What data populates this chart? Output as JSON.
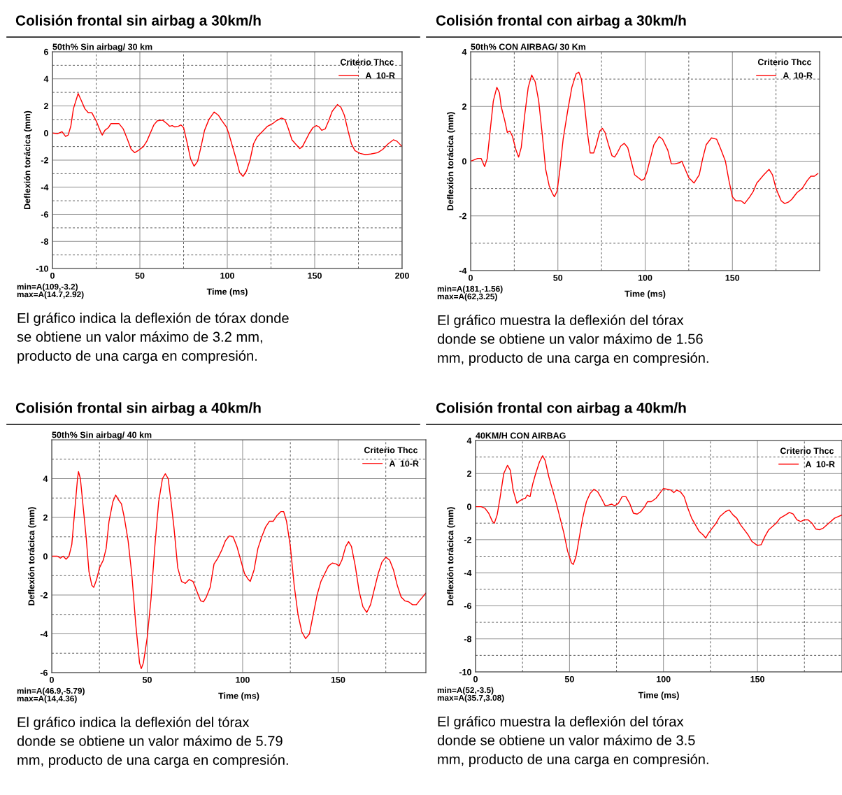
{
  "chart_data": [
    {
      "type": "line",
      "title": "Colisión frontal sin airbag a 30km/h",
      "subtitle": "50th% Sin airbag/ 30 km",
      "xlabel": "Time (ms)",
      "ylabel": "Deflexión torácica (mm)",
      "legend_title": "Criterio Thcc",
      "legend": "top right",
      "grid": true,
      "xlim": [
        0,
        200
      ],
      "xticks": [
        0,
        {
          "value": 25,
          "label": null
        },
        50,
        {
          "value": 75,
          "label": null
        },
        100,
        {
          "value": 125,
          "label": null
        },
        150,
        {
          "value": 175,
          "label": null
        },
        200
      ],
      "ylim": [
        -10,
        6
      ],
      "yticks": [
        -10,
        {
          "value": -9,
          "label": null
        },
        -8,
        {
          "value": -7,
          "label": null
        },
        -6,
        {
          "value": -5,
          "label": null
        },
        -4,
        {
          "value": -3,
          "label": null
        },
        -2,
        {
          "value": -1,
          "label": null
        },
        0,
        {
          "value": 1,
          "label": null
        },
        2,
        {
          "value": 3,
          "label": null
        },
        4,
        {
          "value": 5,
          "label": null
        },
        6
      ],
      "annotations": [
        "min=A(109,-3.2)",
        "max=A(14.7,2.92)",
        "El gráfico indica la deflexión de tórax donde\nse obtiene un valor máximo de 3.2 mm,\nproducto de una carga en compresión."
      ],
      "series": [
        {
          "name": "A  10-R",
          "color": "#ff0000",
          "x": [
            0,
            3,
            5.5,
            7.5,
            9,
            10.5,
            12,
            14.7,
            16.5,
            18.5,
            20.5,
            22.5,
            25,
            27.5,
            28.5,
            30,
            32,
            33.5,
            36,
            38,
            40.5,
            43,
            45,
            47,
            49,
            52,
            54,
            56,
            58,
            60,
            63,
            65.5,
            67,
            68.5,
            70,
            72,
            73.5,
            75,
            77,
            79,
            81,
            83,
            85,
            87,
            89.5,
            92.5,
            95,
            97,
            99.5,
            101,
            103,
            105,
            107,
            109,
            111,
            113,
            115,
            117,
            120,
            123,
            126,
            128,
            131,
            133,
            135,
            137,
            139,
            141.5,
            143,
            145,
            147,
            149,
            151,
            152.5,
            154,
            156,
            158,
            160,
            163,
            165,
            167,
            169,
            171,
            173,
            176,
            179,
            182,
            186,
            189,
            192,
            195,
            197,
            200
          ],
          "values": [
            0,
            -0.05,
            0.1,
            -0.25,
            -0.15,
            0.5,
            1.8,
            2.92,
            2.4,
            1.8,
            1.5,
            1.5,
            0.9,
            0.1,
            -0.15,
            0.2,
            0.4,
            0.7,
            0.7,
            0.7,
            0.3,
            -0.5,
            -1.2,
            -1.45,
            -1.3,
            -1.0,
            -0.6,
            0,
            0.6,
            0.9,
            0.95,
            0.7,
            0.5,
            0.55,
            0.45,
            0.5,
            0.6,
            0.4,
            -0.7,
            -1.9,
            -2.45,
            -2.1,
            -1.0,
            0.2,
            1.0,
            1.55,
            1.3,
            0.9,
            0.45,
            -0.1,
            -1.0,
            -1.9,
            -2.9,
            -3.2,
            -2.8,
            -2.0,
            -0.8,
            -0.3,
            0.1,
            0.5,
            0.7,
            0.9,
            1.1,
            1.0,
            0.3,
            -0.5,
            -0.8,
            -1.15,
            -1.0,
            -0.5,
            0.0,
            0.4,
            0.55,
            0.45,
            0.2,
            0.3,
            0.9,
            1.6,
            2.1,
            1.9,
            1.3,
            0.2,
            -0.8,
            -1.3,
            -1.5,
            -1.6,
            -1.55,
            -1.45,
            -1.2,
            -0.8,
            -0.5,
            -0.6,
            -1.0
          ]
        }
      ]
    },
    {
      "type": "line",
      "title": "Colisión frontal con airbag a 30km/h",
      "subtitle": "50th% CON AIRBAG/ 30 Km",
      "xlabel": "Time (ms)",
      "ylabel": "Deflexión torácica (mm)",
      "legend_title": "Criterio Thcc",
      "legend": "top right",
      "grid": true,
      "xlim": [
        0,
        200
      ],
      "xticks": [
        0,
        {
          "value": 25,
          "label": null
        },
        50,
        {
          "value": 75,
          "label": null
        },
        100,
        {
          "value": 125,
          "label": null
        },
        150,
        {
          "value": 175,
          "label": null
        }
      ],
      "ylim": [
        -4,
        4
      ],
      "yticks": [
        -4,
        {
          "value": -3,
          "label": null
        },
        -2,
        {
          "value": -1,
          "label": null
        },
        0,
        {
          "value": 1,
          "label": null
        },
        2,
        {
          "value": 3,
          "label": null
        },
        4
      ],
      "annotations": [
        "min=A(181,-1.56)",
        "max=A(62,3.25)",
        "El gráfico muestra la deflexión del tórax\ndonde se obtiene un valor máximo de 1.56\nmm, producto de una carga en compresión."
      ],
      "series": [
        {
          "name": "A  10-R",
          "color": "#ff0000",
          "x": [
            0,
            2,
            4,
            6,
            8,
            9.5,
            11,
            13,
            15,
            16.5,
            17.5,
            19.5,
            21,
            22.5,
            24,
            26,
            27.5,
            29,
            31,
            33,
            35,
            37,
            39,
            41,
            43,
            45,
            47,
            48,
            49.5,
            51,
            53,
            55.5,
            58,
            60.5,
            62,
            63.5,
            65,
            67,
            68.5,
            70.5,
            72,
            74,
            75.5,
            77,
            79,
            81,
            82.5,
            84,
            86,
            88,
            90,
            92,
            94,
            96,
            98,
            99.5,
            101,
            103,
            105,
            108,
            110,
            113,
            115,
            117,
            120,
            121,
            123,
            125,
            128,
            131,
            133,
            135,
            138,
            141,
            143,
            146,
            148,
            150,
            152,
            155,
            157,
            160,
            162,
            164,
            166,
            168,
            171,
            173,
            175,
            178,
            180,
            182,
            184,
            187,
            190,
            193,
            195,
            197,
            199
          ],
          "values": [
            0,
            0.05,
            0.1,
            0.1,
            -0.2,
            0.1,
            1.0,
            2.2,
            2.7,
            2.5,
            2.0,
            1.5,
            1.05,
            1.1,
            0.9,
            0.4,
            0.15,
            0.5,
            1.7,
            2.7,
            3.15,
            2.9,
            2.2,
            1.0,
            -0.3,
            -0.9,
            -1.2,
            -1.3,
            -1.1,
            -0.4,
            0.8,
            1.8,
            2.7,
            3.2,
            3.25,
            3.0,
            2.2,
            1.0,
            0.3,
            0.3,
            0.6,
            1.1,
            1.2,
            1.05,
            0.6,
            0.2,
            0.15,
            0.3,
            0.55,
            0.65,
            0.5,
            0.0,
            -0.5,
            -0.6,
            -0.7,
            -0.65,
            -0.4,
            0.1,
            0.6,
            0.9,
            0.8,
            0.4,
            -0.1,
            -0.1,
            -0.05,
            0.0,
            -0.3,
            -0.6,
            -0.8,
            -0.5,
            0.1,
            0.6,
            0.85,
            0.8,
            0.5,
            0.0,
            -0.7,
            -1.3,
            -1.45,
            -1.45,
            -1.55,
            -1.3,
            -1.1,
            -0.8,
            -0.65,
            -0.5,
            -0.3,
            -0.5,
            -1.0,
            -1.45,
            -1.55,
            -1.5,
            -1.4,
            -1.15,
            -1.0,
            -0.7,
            -0.55,
            -0.55,
            -0.45
          ]
        }
      ]
    },
    {
      "type": "line",
      "title": "Colisión frontal sin airbag a 40km/h",
      "subtitle": "50th% Sin airbag/ 40 km",
      "xlabel": "Time (ms)",
      "ylabel": "Deflexión torácica (mm)",
      "legend_title": "Criterio Thcc",
      "legend": "top right",
      "grid": true,
      "xlim": [
        0,
        196
      ],
      "xticks": [
        0,
        {
          "value": 25,
          "label": null
        },
        50,
        {
          "value": 75,
          "label": null
        },
        100,
        {
          "value": 125,
          "label": null
        },
        150,
        {
          "value": 175,
          "label": null
        }
      ],
      "ylim": [
        -6,
        6
      ],
      "yticks": [
        -6,
        {
          "value": -5,
          "label": null
        },
        -4,
        {
          "value": -3,
          "label": null
        },
        -2,
        {
          "value": -1,
          "label": null
        },
        0,
        {
          "value": 1,
          "label": null
        },
        2,
        {
          "value": 3,
          "label": null
        },
        4,
        {
          "value": 5,
          "label": null
        }
      ],
      "annotations": [
        "min=A(46.9,-5.79)",
        "max=A(14,4.36)",
        "El gráfico indica la deflexión del tórax\ndonde se obtiene un valor máximo de 5.79\nmm, producto de una carga en compresión."
      ],
      "series": [
        {
          "name": "A  10-R",
          "color": "#ff0000",
          "x": [
            0,
            3,
            4.5,
            6,
            7.5,
            9,
            10.5,
            12,
            13.5,
            14,
            15,
            16.5,
            18,
            19.5,
            21,
            22,
            23.5,
            25,
            27,
            28.5,
            30,
            32,
            33.5,
            35,
            36.5,
            38,
            40,
            42,
            44,
            46,
            46.9,
            48,
            50,
            52,
            54,
            56,
            58,
            59.5,
            61,
            62.5,
            64,
            66,
            68,
            70,
            72,
            74,
            76,
            78,
            79.5,
            81,
            83,
            85,
            87,
            89,
            91,
            93,
            95,
            97,
            99,
            101,
            103,
            104,
            106,
            108,
            110,
            112,
            114,
            116,
            118,
            120,
            121.5,
            123,
            125,
            127,
            129,
            131,
            133,
            135,
            137,
            139,
            141,
            143,
            145,
            147,
            149,
            150.5,
            152,
            154,
            155.5,
            157,
            159,
            161,
            163,
            165,
            167,
            169,
            171,
            173,
            175,
            177,
            179,
            181,
            183,
            185,
            187,
            189,
            191,
            193,
            196
          ],
          "values": [
            0,
            0.0,
            -0.1,
            0.0,
            -0.15,
            0.0,
            0.6,
            2.3,
            4.0,
            4.36,
            4.0,
            2.5,
            1.0,
            -0.8,
            -1.5,
            -1.6,
            -1.2,
            -0.6,
            -0.2,
            0.4,
            1.8,
            2.8,
            3.15,
            2.9,
            2.7,
            2.0,
            0.8,
            -1.0,
            -3.5,
            -5.5,
            -5.79,
            -5.5,
            -4.2,
            -2.2,
            0.5,
            2.8,
            4.0,
            4.25,
            4.0,
            2.8,
            1.5,
            -0.6,
            -1.3,
            -1.4,
            -1.2,
            -1.3,
            -1.8,
            -2.3,
            -2.35,
            -2.1,
            -1.6,
            -0.4,
            -0.1,
            0.3,
            0.8,
            1.05,
            1.0,
            0.5,
            -0.2,
            -0.9,
            -1.2,
            -1.3,
            -0.7,
            0.4,
            1.0,
            1.5,
            1.8,
            1.8,
            2.1,
            2.3,
            2.3,
            1.8,
            0.5,
            -1.5,
            -3.0,
            -3.9,
            -4.25,
            -4.0,
            -3.0,
            -2.0,
            -1.3,
            -0.9,
            -0.5,
            -0.35,
            -0.4,
            -0.5,
            -0.2,
            0.5,
            0.75,
            0.5,
            -0.5,
            -1.8,
            -2.6,
            -2.9,
            -2.5,
            -1.7,
            -0.9,
            -0.3,
            -0.05,
            -0.2,
            -0.7,
            -1.5,
            -2.1,
            -2.3,
            -2.35,
            -2.5,
            -2.5,
            -2.25,
            -1.9
          ]
        }
      ]
    },
    {
      "type": "line",
      "title": "Colisión frontal con airbag a 40km/h",
      "subtitle": "40KM/H CON AIRBAG",
      "xlabel": "Time (ms)",
      "ylabel": "Deflexión torácica (mm)",
      "legend_title": "Criterio Thcc",
      "legend": "top right",
      "grid": true,
      "xlim": [
        0,
        195
      ],
      "xticks": [
        0,
        {
          "value": 25,
          "label": null
        },
        50,
        {
          "value": 75,
          "label": null
        },
        100,
        {
          "value": 125,
          "label": null
        },
        150,
        {
          "value": 175,
          "label": null
        }
      ],
      "ylim": [
        -10,
        4
      ],
      "yticks": [
        -10,
        {
          "value": -9,
          "label": null
        },
        -8,
        {
          "value": -7,
          "label": null
        },
        -6,
        {
          "value": -5,
          "label": null
        },
        -4,
        {
          "value": -3,
          "label": null
        },
        -2,
        {
          "value": -1,
          "label": null
        },
        0,
        {
          "value": 1,
          "label": null
        },
        2,
        {
          "value": 3,
          "label": null
        },
        4
      ],
      "annotations": [
        "min=A(52,-3.5)",
        "max=A(35.7,3.08)",
        "El gráfico muestra la deflexión del tórax\ndonde se obtiene un valor máximo de 3.5\nmm, producto de una carga en compresión."
      ],
      "series": [
        {
          "name": "A  10-R",
          "color": "#ff0000",
          "x": [
            0,
            3,
            5,
            7,
            9,
            10,
            11.5,
            13,
            15,
            17,
            18.5,
            20,
            22,
            23.5,
            25,
            26.5,
            27.5,
            29,
            30.5,
            32,
            34,
            35.7,
            37,
            39,
            41,
            43,
            45,
            47,
            49,
            51,
            52,
            53.5,
            55,
            57,
            59,
            61,
            63,
            65,
            67,
            69,
            71,
            72.5,
            74,
            76,
            78,
            80,
            82,
            84,
            86,
            88,
            90,
            91.5,
            93.5,
            96,
            98,
            100,
            102,
            104,
            105.5,
            107,
            109,
            111,
            113,
            115,
            117,
            119,
            121,
            122.5,
            124,
            126,
            128,
            130,
            133,
            135,
            137,
            139,
            141,
            143,
            145,
            147,
            150,
            152,
            154,
            156,
            158,
            160,
            162,
            165,
            167,
            169,
            171,
            173,
            175,
            177,
            179,
            181,
            183,
            185,
            188,
            191,
            195
          ],
          "values": [
            0,
            0.0,
            -0.1,
            -0.4,
            -0.9,
            -1.0,
            -0.5,
            0.5,
            2.0,
            2.5,
            2.2,
            1.0,
            0.2,
            0.35,
            0.45,
            0.5,
            0.7,
            0.6,
            1.4,
            2.0,
            2.7,
            3.08,
            2.8,
            1.8,
            1.0,
            0.2,
            -0.7,
            -1.6,
            -2.7,
            -3.4,
            -3.5,
            -3.0,
            -2.0,
            -0.7,
            0.3,
            0.8,
            1.05,
            0.9,
            0.5,
            0.05,
            0.1,
            0.15,
            0.05,
            0.2,
            0.6,
            0.6,
            0.2,
            -0.4,
            -0.45,
            -0.3,
            0.0,
            0.3,
            0.3,
            0.5,
            0.8,
            1.1,
            1.05,
            1.0,
            0.85,
            1.0,
            0.9,
            0.6,
            -0.1,
            -0.7,
            -1.1,
            -1.5,
            -1.7,
            -1.9,
            -1.6,
            -1.3,
            -1.0,
            -0.6,
            -0.3,
            -0.2,
            -0.5,
            -0.7,
            -1.1,
            -1.4,
            -1.7,
            -2.1,
            -2.35,
            -2.3,
            -1.8,
            -1.4,
            -1.2,
            -1.0,
            -0.7,
            -0.5,
            -0.35,
            -0.45,
            -0.8,
            -0.9,
            -0.8,
            -0.8,
            -1.0,
            -1.35,
            -1.4,
            -1.3,
            -1.0,
            -0.7,
            -0.5
          ]
        }
      ]
    }
  ]
}
